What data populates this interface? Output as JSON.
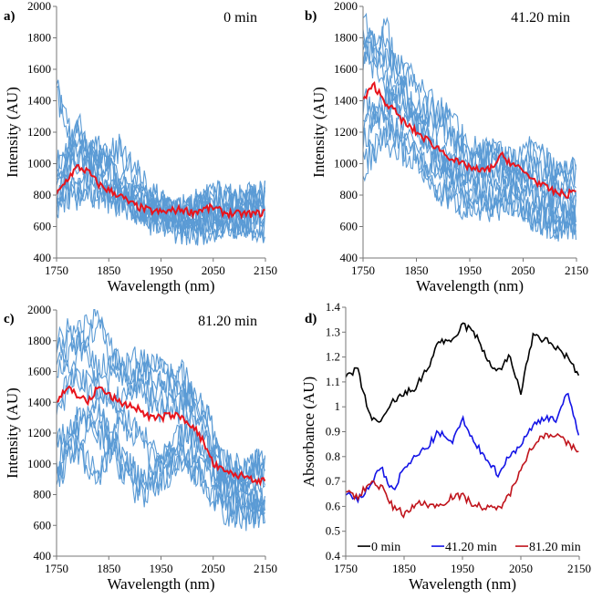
{
  "chart_data": [
    {
      "panel": "a)",
      "type": "line",
      "title": "0 min",
      "xlabel": "Wavelength (nm)",
      "ylabel": "Intensity (AU)",
      "xlim": [
        1750,
        2150
      ],
      "ylim": [
        400,
        2000
      ],
      "xticks": [
        1750,
        1850,
        1950,
        2050,
        2150
      ],
      "yticks": [
        400,
        600,
        800,
        1000,
        1200,
        1400,
        1600,
        1800,
        2000
      ],
      "sample_x": [
        1750,
        1790,
        1830,
        1870,
        1910,
        1950,
        1990,
        2030,
        2070,
        2110,
        2150
      ],
      "samples": [
        [
          1000,
          1100,
          850,
          800,
          700,
          650,
          650,
          700,
          700,
          750,
          800
        ],
        [
          700,
          1200,
          1000,
          900,
          750,
          700,
          680,
          650,
          640,
          650,
          650
        ],
        [
          900,
          800,
          1000,
          1100,
          900,
          750,
          700,
          760,
          740,
          700,
          720
        ],
        [
          650,
          900,
          800,
          750,
          800,
          700,
          620,
          600,
          600,
          620,
          580
        ],
        [
          1500,
          1000,
          1100,
          850,
          700,
          650,
          700,
          780,
          800,
          780,
          800
        ],
        [
          750,
          1300,
          900,
          800,
          650,
          600,
          580,
          560,
          620,
          600,
          600
        ]
      ],
      "mean_x": [
        1750,
        1770,
        1790,
        1810,
        1830,
        1850,
        1870,
        1890,
        1910,
        1930,
        1950,
        1970,
        1990,
        2010,
        2030,
        2050,
        2070,
        2090,
        2110,
        2130,
        2150
      ],
      "mean": [
        800,
        900,
        980,
        950,
        870,
        830,
        800,
        750,
        720,
        700,
        690,
        700,
        710,
        690,
        710,
        720,
        690,
        680,
        680,
        680,
        690
      ],
      "sample_color": "#5b9bd5",
      "mean_color": "#e8141c"
    },
    {
      "panel": "b)",
      "type": "line",
      "title": "41.20 min",
      "xlabel": "Wavelength (nm)",
      "ylabel": "Intensity (AU)",
      "xlim": [
        1750,
        2150
      ],
      "ylim": [
        400,
        2000
      ],
      "xticks": [
        1750,
        1850,
        1950,
        2050,
        2150
      ],
      "yticks": [
        400,
        600,
        800,
        1000,
        1200,
        1400,
        1600,
        1800,
        2000
      ],
      "sample_x": [
        1750,
        1790,
        1830,
        1870,
        1910,
        1950,
        1990,
        2030,
        2070,
        2110,
        2150
      ],
      "samples": [
        [
          1800,
          1600,
          1300,
          1200,
          1000,
          900,
          1000,
          900,
          850,
          800,
          750
        ],
        [
          1200,
          1400,
          1500,
          1100,
          900,
          800,
          700,
          750,
          700,
          650,
          700
        ],
        [
          1700,
          1900,
          1400,
          1300,
          1200,
          1000,
          1100,
          1000,
          950,
          900,
          900
        ],
        [
          1400,
          1300,
          1200,
          900,
          800,
          700,
          750,
          800,
          650,
          600,
          600
        ],
        [
          1900,
          1700,
          1600,
          1400,
          1300,
          1100,
          1050,
          1000,
          1100,
          950,
          950
        ],
        [
          1000,
          1200,
          1100,
          1000,
          1000,
          900,
          850,
          900,
          800,
          700,
          650
        ]
      ],
      "mean_x": [
        1750,
        1770,
        1790,
        1810,
        1830,
        1850,
        1870,
        1890,
        1910,
        1930,
        1950,
        1970,
        1990,
        2010,
        2030,
        2050,
        2070,
        2090,
        2110,
        2130,
        2150
      ],
      "mean": [
        1400,
        1500,
        1400,
        1330,
        1250,
        1200,
        1150,
        1100,
        1050,
        1000,
        980,
        950,
        970,
        1050,
        1000,
        950,
        900,
        850,
        820,
        800,
        830
      ],
      "sample_color": "#5b9bd5",
      "mean_color": "#e8141c"
    },
    {
      "panel": "c)",
      "type": "line",
      "title": "81.20 min",
      "xlabel": "Wavelength (nm)",
      "ylabel": "Intensity (AU)",
      "xlim": [
        1750,
        2150
      ],
      "ylim": [
        400,
        2000
      ],
      "xticks": [
        1750,
        1850,
        1950,
        2050,
        2150
      ],
      "yticks": [
        400,
        600,
        800,
        1000,
        1200,
        1400,
        1600,
        1800,
        2000
      ],
      "sample_x": [
        1750,
        1790,
        1830,
        1870,
        1910,
        1950,
        1990,
        2030,
        2070,
        2110,
        2150
      ],
      "samples": [
        [
          1800,
          1900,
          1600,
          1700,
          1500,
          1400,
          1400,
          1200,
          900,
          900,
          1000
        ],
        [
          1000,
          1300,
          1200,
          1100,
          900,
          1000,
          1100,
          1000,
          800,
          700,
          650
        ],
        [
          1600,
          1800,
          2000,
          1600,
          1700,
          1500,
          1600,
          1300,
          1000,
          900,
          900
        ],
        [
          1200,
          1100,
          900,
          1300,
          1200,
          1000,
          1200,
          1100,
          900,
          800,
          750
        ],
        [
          1400,
          1600,
          1500,
          1400,
          1600,
          1700,
          1500,
          1400,
          1000,
          950,
          1050
        ],
        [
          900,
          1200,
          1400,
          1000,
          800,
          900,
          1000,
          900,
          700,
          650,
          700
        ]
      ],
      "mean_x": [
        1750,
        1770,
        1790,
        1810,
        1830,
        1850,
        1870,
        1890,
        1910,
        1930,
        1950,
        1970,
        1990,
        2010,
        2030,
        2050,
        2070,
        2090,
        2110,
        2130,
        2150
      ],
      "mean": [
        1400,
        1500,
        1450,
        1400,
        1500,
        1450,
        1400,
        1380,
        1350,
        1300,
        1300,
        1320,
        1300,
        1250,
        1150,
        1000,
        950,
        930,
        920,
        900,
        880
      ],
      "sample_color": "#5b9bd5",
      "mean_color": "#e8141c"
    },
    {
      "panel": "d)",
      "type": "line",
      "title": "",
      "xlabel": "Wavelength (nm)",
      "ylabel": "Absorbance (AU)",
      "xlim": [
        1750,
        2150
      ],
      "ylim": [
        0.4,
        1.4
      ],
      "xticks": [
        1750,
        1850,
        1950,
        2050,
        2150
      ],
      "yticks": [
        0.4,
        0.5,
        0.6,
        0.7,
        0.8,
        0.9,
        1,
        1.1,
        1.2,
        1.3,
        1.4
      ],
      "legend": "bottom",
      "x": [
        1750,
        1770,
        1790,
        1810,
        1830,
        1850,
        1870,
        1890,
        1910,
        1930,
        1950,
        1970,
        1990,
        2010,
        2030,
        2050,
        2070,
        2090,
        2110,
        2130,
        2150
      ],
      "series": [
        {
          "name": "0 min",
          "color": "#000000",
          "values": [
            1.12,
            1.15,
            0.97,
            0.93,
            1.02,
            1.05,
            1.08,
            1.15,
            1.27,
            1.25,
            1.33,
            1.3,
            1.2,
            1.14,
            1.2,
            1.06,
            1.28,
            1.27,
            1.24,
            1.2,
            1.12
          ]
        },
        {
          "name": "41.20 min",
          "color": "#1414e6",
          "values": [
            0.65,
            0.62,
            0.68,
            0.76,
            0.66,
            0.75,
            0.8,
            0.84,
            0.9,
            0.85,
            0.95,
            0.85,
            0.8,
            0.73,
            0.8,
            0.85,
            0.92,
            0.96,
            0.95,
            1.05,
            0.89
          ]
        },
        {
          "name": "81.20 min",
          "color": "#c0141c",
          "values": [
            0.67,
            0.63,
            0.7,
            0.68,
            0.6,
            0.57,
            0.61,
            0.61,
            0.6,
            0.64,
            0.64,
            0.61,
            0.59,
            0.59,
            0.64,
            0.76,
            0.84,
            0.89,
            0.89,
            0.85,
            0.82
          ]
        }
      ]
    }
  ]
}
